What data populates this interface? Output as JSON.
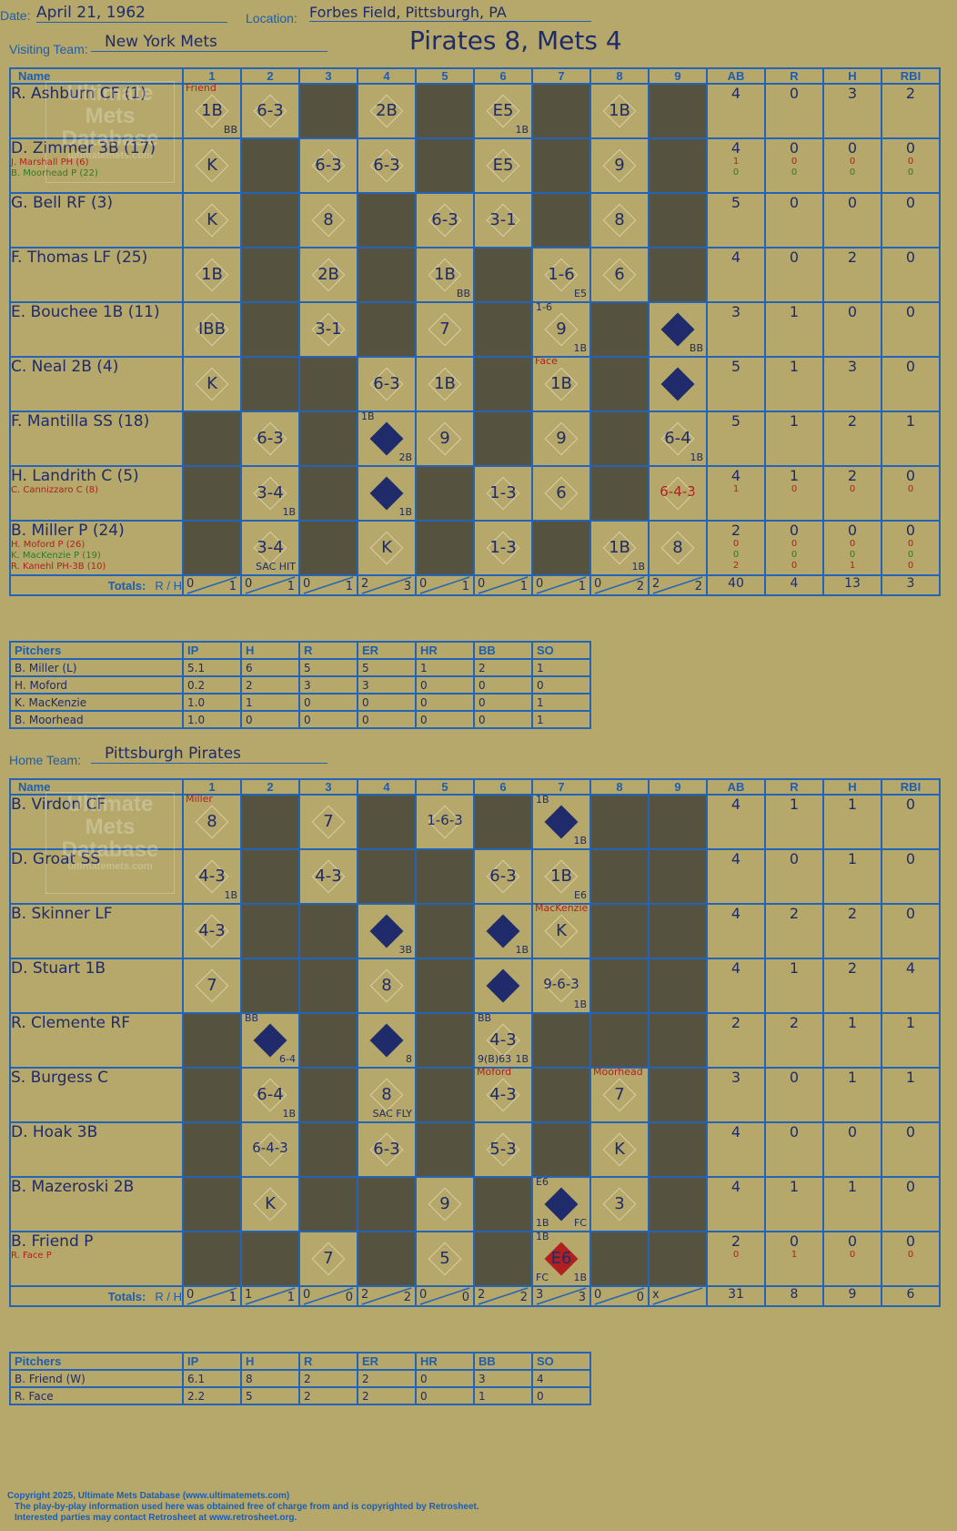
{
  "header": {
    "date_label": "Date:",
    "date": "April 21, 1962",
    "location_label": "Location:",
    "location": "Forbes Field, Pittsburgh, PA",
    "visiting_label": "Visiting Team:",
    "visiting_team": "New York Mets",
    "result": "Pirates 8, Mets 4",
    "home_label": "Home Team:",
    "home_team": "Pittsburgh Pirates"
  },
  "columns": {
    "name": "Name",
    "innings": [
      "1",
      "2",
      "3",
      "4",
      "5",
      "6",
      "7",
      "8",
      "9"
    ],
    "stats": [
      "AB",
      "R",
      "H",
      "RBI"
    ],
    "totals": "Totals:",
    "r_label": "R",
    "h_label": "H"
  },
  "watermark": {
    "line1": "Ultimate",
    "line2": "Mets",
    "line3": "Database",
    "line4": "ultimatemets.com"
  },
  "visitors": [
    {
      "name": "R. Ashburn CF (1)",
      "subs": [],
      "cells": [
        "1B|BB|Friend",
        "6-3",
        "",
        "2B",
        "",
        "E5|1B",
        "",
        "1B",
        ""
      ],
      "dark": [
        0,
        0,
        1,
        0,
        1,
        0,
        1,
        0,
        1
      ],
      "scored": [
        0,
        0,
        0,
        0,
        0,
        0,
        0,
        0,
        0
      ],
      "stats": [
        "4",
        "0",
        "3",
        "2"
      ],
      "substats": []
    },
    {
      "name": "D. Zimmer 3B (17)",
      "subs": [
        {
          "t": "J. Marshall PH (6)",
          "c": "red"
        },
        {
          "t": "B. Moorhead P (22)",
          "c": "green"
        }
      ],
      "cells": [
        "K",
        "",
        "6-3",
        "6-3",
        "",
        "E5",
        "",
        "9",
        ""
      ],
      "dark": [
        0,
        1,
        0,
        0,
        1,
        0,
        1,
        0,
        1
      ],
      "scored": [
        0,
        0,
        0,
        0,
        0,
        0,
        0,
        0,
        0
      ],
      "stats": [
        "4",
        "0",
        "0",
        "0"
      ],
      "substats": [
        [
          "1",
          "0",
          "0",
          "0"
        ],
        [
          "0",
          "0",
          "0",
          "0"
        ]
      ]
    },
    {
      "name": "G. Bell RF (3)",
      "subs": [],
      "cells": [
        "K",
        "",
        "8",
        "",
        "6-3",
        "3-1",
        "",
        "8",
        ""
      ],
      "dark": [
        0,
        1,
        0,
        1,
        0,
        0,
        1,
        0,
        1
      ],
      "scored": [
        0,
        0,
        0,
        0,
        0,
        0,
        0,
        0,
        0
      ],
      "stats": [
        "5",
        "0",
        "0",
        "0"
      ],
      "substats": []
    },
    {
      "name": "F. Thomas LF (25)",
      "subs": [],
      "cells": [
        "1B",
        "",
        "2B",
        "",
        "1B|BB",
        "",
        "1-6|E5",
        "6",
        ""
      ],
      "dark": [
        0,
        1,
        0,
        1,
        0,
        1,
        0,
        0,
        1
      ],
      "scored": [
        0,
        0,
        0,
        0,
        0,
        0,
        0,
        0,
        0
      ],
      "stats": [
        "4",
        "0",
        "2",
        "0"
      ],
      "substats": []
    },
    {
      "name": "E. Bouchee 1B (11)",
      "subs": [],
      "cells": [
        "IBB",
        "",
        "3-1",
        "",
        "7",
        "",
        "9|1B|1-6",
        "",
        "1B|BB"
      ],
      "dark": [
        0,
        1,
        0,
        1,
        0,
        1,
        0,
        1,
        0
      ],
      "scored": [
        0,
        0,
        0,
        0,
        0,
        0,
        0,
        0,
        1
      ],
      "stats": [
        "3",
        "1",
        "0",
        "0"
      ],
      "substats": []
    },
    {
      "name": "C. Neal 2B (4)",
      "subs": [],
      "cells": [
        "K",
        "",
        "",
        "6-3",
        "1B",
        "",
        "1B|Face",
        "",
        "1B"
      ],
      "dark": [
        0,
        1,
        1,
        0,
        0,
        1,
        0,
        1,
        0
      ],
      "scored": [
        0,
        0,
        0,
        0,
        0,
        0,
        0,
        0,
        1
      ],
      "stats": [
        "5",
        "1",
        "3",
        "0"
      ],
      "substats": []
    },
    {
      "name": "F. Mantilla SS (18)",
      "subs": [],
      "cells": [
        "",
        "6-3",
        "",
        "1B|2B|1B",
        "9",
        "",
        "9",
        "",
        "6-4|1B"
      ],
      "dark": [
        1,
        0,
        1,
        0,
        0,
        1,
        0,
        1,
        0
      ],
      "scored": [
        0,
        0,
        0,
        1,
        0,
        0,
        0,
        0,
        0
      ],
      "stats": [
        "5",
        "1",
        "2",
        "1"
      ],
      "substats": []
    },
    {
      "name": "H. Landrith C (5)",
      "subs": [
        {
          "t": "C. Cannizzaro C (8)",
          "c": "red"
        }
      ],
      "cells": [
        "",
        "3-4|1B",
        "",
        "2B|1B",
        "",
        "1-3",
        "6",
        "",
        "6-4-3"
      ],
      "dark": [
        1,
        0,
        1,
        0,
        1,
        0,
        0,
        1,
        0
      ],
      "scored": [
        0,
        0,
        0,
        1,
        0,
        0,
        0,
        0,
        0
      ],
      "stats": [
        "4",
        "1",
        "2",
        "0"
      ],
      "substats": [
        [
          "1",
          "0",
          "0",
          "0"
        ]
      ]
    },
    {
      "name": "B. Miller P (24)",
      "subs": [
        {
          "t": "H. Moford P (26)",
          "c": "red"
        },
        {
          "t": "K. MacKenzie P (19)",
          "c": "green"
        },
        {
          "t": "R. Kanehl PH-3B (10)",
          "c": "red"
        }
      ],
      "cells": [
        "",
        "3-4|SAC HIT",
        "",
        "K",
        "",
        "1-3",
        "",
        "1B|1B",
        "8"
      ],
      "dark": [
        1,
        0,
        1,
        0,
        1,
        0,
        1,
        0,
        0
      ],
      "scored": [
        0,
        0,
        0,
        0,
        0,
        0,
        0,
        0,
        0
      ],
      "stats": [
        "2",
        "0",
        "0",
        "0"
      ],
      "substats": [
        [
          "0",
          "0",
          "0",
          "0"
        ],
        [
          "0",
          "0",
          "0",
          "0"
        ],
        [
          "2",
          "0",
          "1",
          "0"
        ]
      ]
    }
  ],
  "visitor_totals": {
    "innings": [
      [
        "0",
        "1"
      ],
      [
        "0",
        "1"
      ],
      [
        "0",
        "1"
      ],
      [
        "2",
        "3"
      ],
      [
        "0",
        "1"
      ],
      [
        "0",
        "1"
      ],
      [
        "0",
        "1"
      ],
      [
        "0",
        "2"
      ],
      [
        "2",
        "2"
      ]
    ],
    "stats": [
      "40",
      "4",
      "13",
      "3"
    ]
  },
  "visitor_pitchers": {
    "header": [
      "Pitchers",
      "IP",
      "H",
      "R",
      "ER",
      "HR",
      "BB",
      "SO"
    ],
    "rows": [
      [
        "B. Miller (L)",
        "5.1",
        "6",
        "5",
        "5",
        "1",
        "2",
        "1"
      ],
      [
        "H. Moford",
        "0.2",
        "2",
        "3",
        "3",
        "0",
        "0",
        "0"
      ],
      [
        "K. MacKenzie",
        "1.0",
        "1",
        "0",
        "0",
        "0",
        "0",
        "1"
      ],
      [
        "B. Moorhead",
        "1.0",
        "0",
        "0",
        "0",
        "0",
        "0",
        "1"
      ]
    ]
  },
  "home": [
    {
      "name": "B. Virdon CF",
      "subs": [],
      "cells": [
        "8|Miller",
        "",
        "7",
        "",
        "1-6-3",
        "",
        "E6|1B|1B",
        "",
        ""
      ],
      "dark": [
        0,
        1,
        0,
        1,
        0,
        1,
        0,
        1,
        1
      ],
      "scored": [
        0,
        0,
        0,
        0,
        0,
        0,
        1,
        0,
        0
      ],
      "stats": [
        "4",
        "1",
        "1",
        "0"
      ],
      "substats": []
    },
    {
      "name": "D. Groat SS",
      "subs": [],
      "cells": [
        "4-3|1B",
        "",
        "4-3",
        "",
        "",
        "6-3",
        "1B|E6",
        "",
        ""
      ],
      "dark": [
        0,
        1,
        0,
        1,
        1,
        0,
        0,
        1,
        1
      ],
      "scored": [
        0,
        0,
        0,
        0,
        0,
        0,
        0,
        0,
        0
      ],
      "stats": [
        "4",
        "0",
        "1",
        "0"
      ],
      "substats": []
    },
    {
      "name": "B. Skinner LF",
      "subs": [],
      "cells": [
        "4-3",
        "",
        "",
        "2B|3B",
        "",
        "HR|1B",
        "K|MacKenzie",
        "",
        ""
      ],
      "dark": [
        0,
        1,
        1,
        0,
        1,
        0,
        0,
        1,
        1
      ],
      "scored": [
        0,
        0,
        0,
        1,
        0,
        1,
        0,
        0,
        0
      ],
      "stats": [
        "4",
        "2",
        "2",
        "0"
      ],
      "substats": []
    },
    {
      "name": "D. Stuart 1B",
      "subs": [],
      "cells": [
        "7",
        "",
        "",
        "8",
        "",
        "HR",
        "9-6-3|1B",
        "",
        ""
      ],
      "dark": [
        0,
        1,
        1,
        0,
        1,
        0,
        0,
        1,
        1
      ],
      "scored": [
        0,
        0,
        0,
        0,
        0,
        1,
        0,
        0,
        0
      ],
      "stats": [
        "4",
        "1",
        "2",
        "4"
      ],
      "substats": []
    },
    {
      "name": "R. Clemente RF",
      "subs": [],
      "cells": [
        "",
        "1B|6-4|BB",
        "",
        "3B|8",
        "",
        "4-3|1B|BB|9(B)63",
        "",
        "",
        ""
      ],
      "dark": [
        1,
        0,
        1,
        0,
        1,
        0,
        1,
        1,
        1
      ],
      "scored": [
        0,
        1,
        0,
        1,
        0,
        0,
        0,
        0,
        0
      ],
      "stats": [
        "2",
        "2",
        "1",
        "1"
      ],
      "substats": []
    },
    {
      "name": "S. Burgess C",
      "subs": [],
      "cells": [
        "",
        "6-4|1B",
        "",
        "8|SAC FLY",
        "",
        "4-3|Moford",
        "",
        "7|Moorhead",
        ""
      ],
      "dark": [
        1,
        0,
        1,
        0,
        1,
        0,
        1,
        0,
        1
      ],
      "scored": [
        0,
        0,
        0,
        0,
        0,
        0,
        0,
        0,
        0
      ],
      "stats": [
        "3",
        "0",
        "1",
        "1"
      ],
      "substats": []
    },
    {
      "name": "D. Hoak 3B",
      "subs": [],
      "cells": [
        "",
        "6-4-3",
        "",
        "6-3",
        "",
        "5-3",
        "",
        "K",
        ""
      ],
      "dark": [
        1,
        0,
        1,
        0,
        1,
        0,
        1,
        0,
        1
      ],
      "scored": [
        0,
        0,
        0,
        0,
        0,
        0,
        0,
        0,
        0
      ],
      "stats": [
        "4",
        "0",
        "0",
        "0"
      ],
      "substats": []
    },
    {
      "name": "B. Mazeroski 2B",
      "subs": [],
      "cells": [
        "",
        "K",
        "",
        "",
        "9",
        "",
        "1B|FC|E6|1B",
        "3",
        ""
      ],
      "dark": [
        1,
        0,
        1,
        1,
        0,
        1,
        0,
        0,
        1
      ],
      "scored": [
        0,
        0,
        0,
        0,
        0,
        0,
        1,
        0,
        0
      ],
      "stats": [
        "4",
        "1",
        "1",
        "0"
      ],
      "substats": []
    },
    {
      "name": "B. Friend P",
      "subs": [
        {
          "t": "R. Face P",
          "c": "red"
        }
      ],
      "cells": [
        "",
        "",
        "7",
        "",
        "5",
        "",
        "E6|1B|1B|FC",
        "",
        ""
      ],
      "dark": [
        1,
        1,
        0,
        1,
        0,
        1,
        0,
        1,
        1
      ],
      "scored": [
        0,
        0,
        0,
        0,
        0,
        0,
        2,
        0,
        0
      ],
      "stats": [
        "2",
        "0",
        "0",
        "0"
      ],
      "substats": [
        [
          "0",
          "1",
          "0",
          "0"
        ]
      ]
    }
  ],
  "home_totals": {
    "innings": [
      [
        "0",
        "1"
      ],
      [
        "1",
        "1"
      ],
      [
        "0",
        "0"
      ],
      [
        "2",
        "2"
      ],
      [
        "0",
        "0"
      ],
      [
        "2",
        "2"
      ],
      [
        "3",
        "3"
      ],
      [
        "0",
        "0"
      ],
      [
        "x",
        ""
      ]
    ],
    "stats": [
      "31",
      "8",
      "9",
      "6"
    ]
  },
  "home_pitchers": {
    "header": [
      "Pitchers",
      "IP",
      "H",
      "R",
      "ER",
      "HR",
      "BB",
      "SO"
    ],
    "rows": [
      [
        "B. Friend (W)",
        "6.1",
        "8",
        "2",
        "2",
        "0",
        "3",
        "4"
      ],
      [
        "R. Face",
        "2.2",
        "5",
        "2",
        "2",
        "0",
        "1",
        "0"
      ]
    ]
  },
  "footer": {
    "line1": "Copyright 2025, Ultimate Mets Database (www.ultimatemets.com)",
    "line2": "The play-by-play information used here was obtained free of charge from and is copyrighted by Retrosheet.",
    "line3": "Interested parties may contact Retrosheet at www.retrosheet.org."
  }
}
